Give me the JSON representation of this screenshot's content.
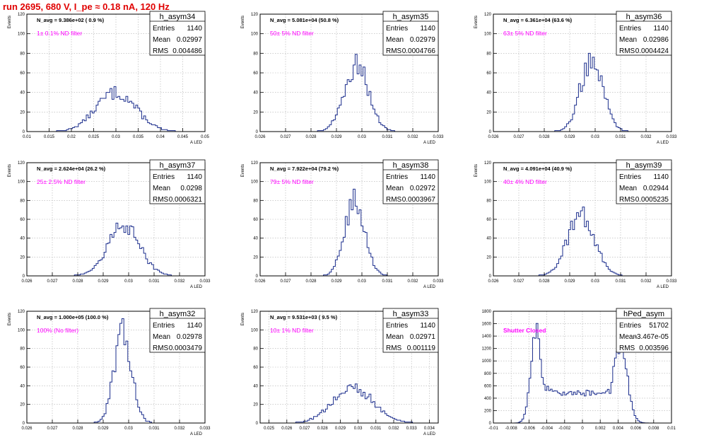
{
  "page_title": "run 2695,   680 V, I_pe ≈ 0.18 nA, 120 Hz",
  "colors": {
    "title": "#e00000",
    "histogram": "#1a2c8c",
    "annotation": "#ff00ff",
    "grid": "#b0b0b0",
    "frame": "#000000"
  },
  "chart_data": [
    {
      "type": "area",
      "title": "h_asym34",
      "ylabel": "Events",
      "xlabel": "A_LED",
      "ylim": [
        0,
        120
      ],
      "xlim": [
        0.01,
        0.05
      ],
      "xticks": [
        0.01,
        0.015,
        0.02,
        0.025,
        0.03,
        0.035,
        0.04,
        0.045,
        0.05
      ],
      "xtick_labels": [
        "0.01",
        "0.015",
        "0.02",
        "0.025",
        "0.03",
        "0.035",
        "0.04",
        "0.045",
        "0.05"
      ],
      "yticks": [
        0,
        20,
        40,
        60,
        80,
        100,
        120
      ],
      "ytick_labels": [
        "0",
        "20",
        "40",
        "60",
        "80",
        "100",
        "120"
      ],
      "navg": "N_avg = 9.386e+02 ( 0.9 %)",
      "filter": "1± 0.1% ND filter",
      "stats": {
        "Entries": "1140",
        "Mean": "0.02997",
        "RMS": "0.004486"
      },
      "mu": 0.02997,
      "sigma": 0.004486,
      "peak": 40
    },
    {
      "type": "area",
      "title": "h_asym35",
      "ylabel": "Events",
      "xlabel": "A_LED",
      "ylim": [
        0,
        120
      ],
      "xlim": [
        0.026,
        0.033
      ],
      "xticks": [
        0.026,
        0.027,
        0.028,
        0.029,
        0.03,
        0.031,
        0.032,
        0.033
      ],
      "xtick_labels": [
        "0.026",
        "0.027",
        "0.028",
        "0.029",
        "0.03",
        "0.031",
        "0.032",
        "0.033"
      ],
      "yticks": [
        0,
        20,
        40,
        60,
        80,
        100,
        120
      ],
      "ytick_labels": [
        "0",
        "20",
        "40",
        "60",
        "80",
        "100",
        "120"
      ],
      "navg": "N_avg = 5.081e+04 (50.8 %)",
      "filter": "50± 5% ND filter",
      "stats": {
        "Entries": "1140",
        "Mean": "0.02979",
        "RMS": "0.0004766"
      },
      "mu": 0.02979,
      "sigma": 0.0004766,
      "peak": 68
    },
    {
      "type": "area",
      "title": "h_asym36",
      "ylabel": "Events",
      "xlabel": "A_LED",
      "ylim": [
        0,
        120
      ],
      "xlim": [
        0.026,
        0.033
      ],
      "xticks": [
        0.026,
        0.027,
        0.028,
        0.029,
        0.03,
        0.031,
        0.032,
        0.033
      ],
      "xtick_labels": [
        "0.026",
        "0.027",
        "0.028",
        "0.029",
        "0.03",
        "0.031",
        "0.032",
        "0.033"
      ],
      "yticks": [
        0,
        20,
        40,
        60,
        80,
        100,
        120
      ],
      "ytick_labels": [
        "0",
        "20",
        "40",
        "60",
        "80",
        "100",
        "120"
      ],
      "navg": "N_avg = 6.361e+04 (63.6 %)",
      "filter": "63± 5% ND filter",
      "stats": {
        "Entries": "1140",
        "Mean": "0.02986",
        "RMS": "0.0004424"
      },
      "mu": 0.02986,
      "sigma": 0.0004424,
      "peak": 74
    },
    {
      "type": "area",
      "title": "h_asym37",
      "ylabel": "Events",
      "xlabel": "A_LED",
      "ylim": [
        0,
        120
      ],
      "xlim": [
        0.026,
        0.033
      ],
      "xticks": [
        0.026,
        0.027,
        0.028,
        0.029,
        0.03,
        0.031,
        0.032,
        0.033
      ],
      "xtick_labels": [
        "0.026",
        "0.027",
        "0.028",
        "0.029",
        "0.03",
        "0.031",
        "0.032",
        "0.033"
      ],
      "yticks": [
        0,
        20,
        40,
        60,
        80,
        100,
        120
      ],
      "ytick_labels": [
        "0",
        "20",
        "40",
        "60",
        "80",
        "100",
        "120"
      ],
      "navg": "N_avg = 2.624e+04 (26.2 %)",
      "filter": "25± 2.5% ND filter",
      "stats": {
        "Entries": "1140",
        "Mean": "0.0298",
        "RMS": "0.0006321"
      },
      "mu": 0.0298,
      "sigma": 0.0006321,
      "peak": 52
    },
    {
      "type": "area",
      "title": "h_asym38",
      "ylabel": "Events",
      "xlabel": "A_LED",
      "ylim": [
        0,
        120
      ],
      "xlim": [
        0.026,
        0.033
      ],
      "xticks": [
        0.026,
        0.027,
        0.028,
        0.029,
        0.03,
        0.031,
        0.032,
        0.033
      ],
      "xtick_labels": [
        "0.026",
        "0.027",
        "0.028",
        "0.029",
        "0.03",
        "0.031",
        "0.032",
        "0.033"
      ],
      "yticks": [
        0,
        20,
        40,
        60,
        80,
        100,
        120
      ],
      "ytick_labels": [
        "0",
        "20",
        "40",
        "60",
        "80",
        "100",
        "120"
      ],
      "navg": "N_avg = 7.922e+04 (79.2 %)",
      "filter": "79± 5% ND filter",
      "stats": {
        "Entries": "1140",
        "Mean": "0.02972",
        "RMS": "0.0003967"
      },
      "mu": 0.02972,
      "sigma": 0.0003967,
      "peak": 78
    },
    {
      "type": "area",
      "title": "h_asym39",
      "ylabel": "Events",
      "xlabel": "A_LED",
      "ylim": [
        0,
        120
      ],
      "xlim": [
        0.026,
        0.033
      ],
      "xticks": [
        0.026,
        0.027,
        0.028,
        0.029,
        0.03,
        0.031,
        0.032,
        0.033
      ],
      "xtick_labels": [
        "0.026",
        "0.027",
        "0.028",
        "0.029",
        "0.03",
        "0.031",
        "0.032",
        "0.033"
      ],
      "yticks": [
        0,
        20,
        40,
        60,
        80,
        100,
        120
      ],
      "ytick_labels": [
        "0",
        "20",
        "40",
        "60",
        "80",
        "100",
        "120"
      ],
      "navg": "N_avg = 4.091e+04 (40.9 %)",
      "filter": "40± 4% ND filter",
      "stats": {
        "Entries": "1140",
        "Mean": "0.02944",
        "RMS": "0.0005235"
      },
      "mu": 0.02944,
      "sigma": 0.0005235,
      "peak": 66
    },
    {
      "type": "area",
      "title": "h_asym32",
      "ylabel": "Events",
      "xlabel": "A_LED",
      "ylim": [
        0,
        120
      ],
      "xlim": [
        0.026,
        0.033
      ],
      "xticks": [
        0.026,
        0.027,
        0.028,
        0.029,
        0.03,
        0.031,
        0.032,
        0.033
      ],
      "xtick_labels": [
        "0.026",
        "0.027",
        "0.028",
        "0.029",
        "0.03",
        "0.031",
        "0.032",
        "0.033"
      ],
      "yticks": [
        0,
        20,
        40,
        60,
        80,
        100,
        120
      ],
      "ytick_labels": [
        "0",
        "20",
        "40",
        "60",
        "80",
        "100",
        "120"
      ],
      "navg": "N_avg = 1.000e+05 (100.0 %)",
      "filter": "100% (No filter)",
      "stats": {
        "Entries": "1140",
        "Mean": "0.02978",
        "RMS": "0.0003479"
      },
      "mu": 0.02978,
      "sigma": 0.0003479,
      "peak": 95
    },
    {
      "type": "area",
      "title": "h_asym33",
      "ylabel": "Events",
      "xlabel": "A_LED",
      "ylim": [
        0,
        120
      ],
      "xlim": [
        0.0245,
        0.0345
      ],
      "xticks": [
        0.025,
        0.026,
        0.027,
        0.028,
        0.029,
        0.03,
        0.031,
        0.032,
        0.033,
        0.034
      ],
      "xtick_labels": [
        "0.025",
        "0.026",
        "0.027",
        "0.028",
        "0.029",
        "0.03",
        "0.031",
        "0.032",
        "0.033",
        "0.034"
      ],
      "yticks": [
        0,
        20,
        40,
        60,
        80,
        100,
        120
      ],
      "ytick_labels": [
        "0",
        "20",
        "40",
        "60",
        "80",
        "100",
        "120"
      ],
      "navg": "N_avg = 9.531e+03 ( 9.5 %)",
      "filter": "10± 1% ND filter",
      "stats": {
        "Entries": "1140",
        "Mean": "0.02971",
        "RMS": "0.001119"
      },
      "mu": 0.02971,
      "sigma": 0.001119,
      "peak": 38
    },
    {
      "type": "area",
      "title": "hPed_asym",
      "ylabel": "",
      "xlabel": "",
      "ylim": [
        0,
        1800
      ],
      "xlim": [
        -0.01,
        0.01
      ],
      "xticks": [
        -0.01,
        -0.008,
        -0.006,
        -0.004,
        -0.002,
        0,
        0.002,
        0.004,
        0.006,
        0.008,
        0.01
      ],
      "xtick_labels": [
        "-0.01",
        "-0.008",
        "-0.006",
        "-0.004",
        "-0.002",
        "0",
        "0.002",
        "0.004",
        "0.006",
        "0.008",
        "0.01"
      ],
      "yticks": [
        0,
        200,
        400,
        600,
        800,
        1000,
        1200,
        1400,
        1600,
        1800
      ],
      "ytick_labels": [
        "0",
        "200",
        "400",
        "600",
        "800",
        "1000",
        "1200",
        "1400",
        "1600",
        "1800"
      ],
      "navg": "",
      "filter": "Shutter Closed",
      "stats": {
        "Entries": "51702",
        "Mean": "-3.467e-05",
        "RMS": "0.003596"
      },
      "ped": true
    }
  ]
}
